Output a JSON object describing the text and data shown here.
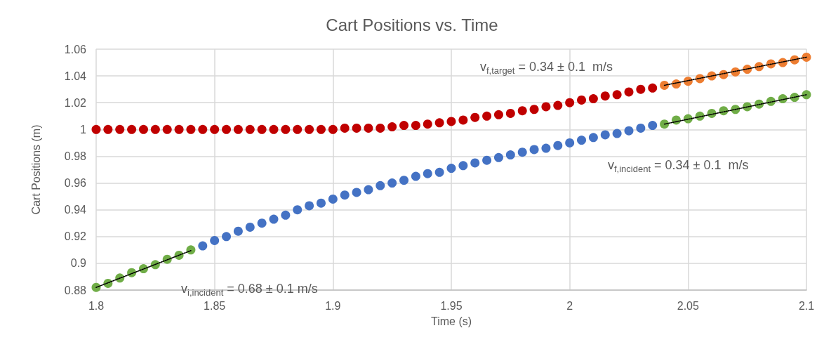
{
  "chart_data": {
    "type": "scatter",
    "title": "Cart Positions vs. Time",
    "xlabel": "Time (s)",
    "ylabel": "Cart Positions (m)",
    "xlim": [
      1.8,
      2.1
    ],
    "xticks": [
      1.8,
      1.85,
      1.9,
      1.95,
      2,
      2.05,
      2.1
    ],
    "ylim": [
      0.88,
      1.06
    ],
    "yticks": [
      0.88,
      0.9,
      0.92,
      0.94,
      0.96,
      0.98,
      1,
      1.02,
      1.04,
      1.06
    ],
    "grid": true,
    "marker": "circle",
    "annotations": [
      "v$_{f,target}$ = 0.34 ± 0.1  m/s",
      "v$_{f,incident}$ = 0.34 ± 0.1  m/s",
      "v$_{i,incident}$ = 0.68 ± 0.1 m/s"
    ],
    "series": [
      {
        "color": "#c00000",
        "x": [
          1.8,
          1.805,
          1.81,
          1.815,
          1.82,
          1.825,
          1.83,
          1.835,
          1.84,
          1.845,
          1.85,
          1.855,
          1.86,
          1.865,
          1.87,
          1.875,
          1.88,
          1.885,
          1.89,
          1.895,
          1.9,
          1.905,
          1.91,
          1.915,
          1.92,
          1.925,
          1.93,
          1.935,
          1.94,
          1.945,
          1.95,
          1.955,
          1.96,
          1.965,
          1.97,
          1.975,
          1.98,
          1.985,
          1.99,
          1.995,
          2,
          2.005,
          2.01,
          2.015,
          2.02,
          2.025,
          2.03,
          2.035
        ],
        "values": [
          1,
          1,
          1,
          1,
          1,
          1,
          1,
          1,
          1,
          1,
          1,
          1,
          1,
          1,
          1,
          1,
          1,
          1,
          1,
          1,
          1,
          1.001,
          1.001,
          1.001,
          1.001,
          1.002,
          1.003,
          1.003,
          1.004,
          1.005,
          1.006,
          1.007,
          1.009,
          1.01,
          1.011,
          1.012,
          1.014,
          1.015,
          1.017,
          1.018,
          1.02,
          1.022,
          1.023,
          1.025,
          1.026,
          1.028,
          1.03,
          1.031
        ]
      },
      {
        "color": "#ed7d31",
        "x": [
          2.04,
          2.045,
          2.05,
          2.055,
          2.06,
          2.065,
          2.07,
          2.075,
          2.08,
          2.085,
          2.09,
          2.095,
          2.1
        ],
        "values": [
          1.033,
          1.034,
          1.036,
          1.038,
          1.04,
          1.041,
          1.043,
          1.045,
          1.047,
          1.049,
          1.05,
          1.052,
          1.054
        ]
      },
      {
        "color": "#4472c4",
        "x": [
          1.845,
          1.85,
          1.855,
          1.86,
          1.865,
          1.87,
          1.875,
          1.88,
          1.885,
          1.89,
          1.895,
          1.9,
          1.905,
          1.91,
          1.915,
          1.92,
          1.925,
          1.93,
          1.935,
          1.94,
          1.945,
          1.95,
          1.955,
          1.96,
          1.965,
          1.97,
          1.975,
          1.98,
          1.985,
          1.99,
          1.995,
          2,
          2.005,
          2.01,
          2.015,
          2.02,
          2.025,
          2.03,
          2.035
        ],
        "values": [
          0.913,
          0.917,
          0.92,
          0.924,
          0.927,
          0.93,
          0.933,
          0.936,
          0.94,
          0.943,
          0.945,
          0.948,
          0.951,
          0.953,
          0.955,
          0.958,
          0.96,
          0.962,
          0.965,
          0.967,
          0.968,
          0.971,
          0.973,
          0.975,
          0.977,
          0.979,
          0.981,
          0.983,
          0.985,
          0.986,
          0.988,
          0.99,
          0.992,
          0.994,
          0.996,
          0.997,
          0.999,
          1.001,
          1.003
        ]
      },
      {
        "color": "#70ad47",
        "x": [
          1.8,
          1.805,
          1.81,
          1.815,
          1.82,
          1.825,
          1.83,
          1.835,
          1.84,
          2.04,
          2.045,
          2.05,
          2.055,
          2.06,
          2.065,
          2.07,
          2.075,
          2.08,
          2.085,
          2.09,
          2.095,
          2.1
        ],
        "values": [
          0.882,
          0.885,
          0.889,
          0.893,
          0.896,
          0.899,
          0.903,
          0.906,
          0.91,
          1.004,
          1.007,
          1.008,
          1.01,
          1.012,
          1.014,
          1.015,
          1.017,
          1.019,
          1.021,
          1.023,
          1.024,
          1.026
        ]
      },
      {
        "type": "line",
        "color": "#000000",
        "line_style": "dotted",
        "marker": "none",
        "x": [
          1.8,
          1.84
        ],
        "values": [
          0.882,
          0.9095
        ]
      },
      {
        "type": "line",
        "color": "#000000",
        "line_style": "dotted",
        "marker": "none",
        "x": [
          2.04,
          2.1
        ],
        "values": [
          1.004,
          1.026
        ]
      },
      {
        "type": "line",
        "color": "#000000",
        "line_style": "dotted",
        "marker": "none",
        "x": [
          2.04,
          2.1
        ],
        "values": [
          1.033,
          1.054
        ]
      }
    ]
  }
}
